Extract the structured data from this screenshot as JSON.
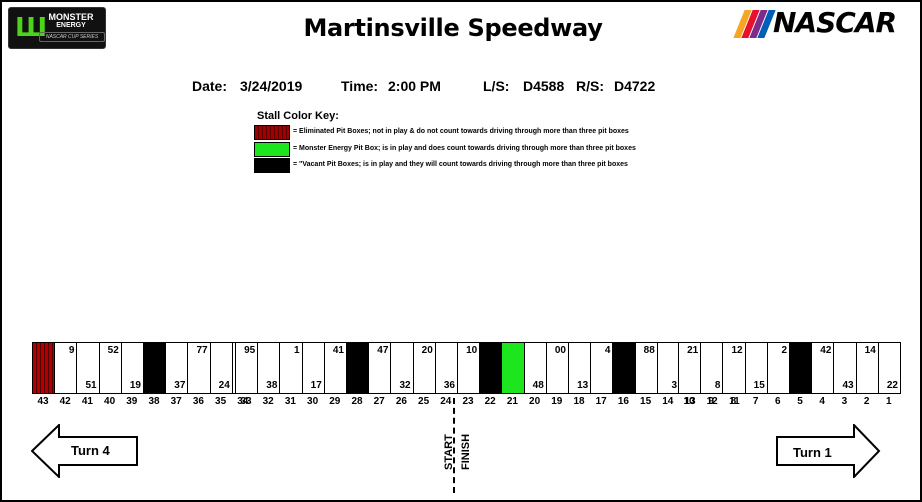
{
  "header": {
    "title": "Martinsville Speedway",
    "logo_left": {
      "line1": "MONSTER",
      "line2": "ENERGY",
      "line3": "NASCAR CUP SERIES",
      "icon": "monster-m-icon"
    },
    "logo_right": {
      "word": "NASCAR",
      "stripe_colors": [
        "#f5a623",
        "#e8112d",
        "#7b2d8e",
        "#005eb8"
      ]
    }
  },
  "info": {
    "date_label": "Date:",
    "date": "3/24/2019",
    "time_label": "Time:",
    "time": "2:00 PM",
    "ls_label": "L/S:",
    "ls": "D4588",
    "rs_label": "R/S:",
    "rs": "D4722"
  },
  "key": {
    "title": "Stall Color Key:",
    "items": [
      {
        "type": "eliminated",
        "color": "#a00000",
        "text": "= Eliminated Pit Boxes; not in play & do not count towards driving through more than three pit boxes"
      },
      {
        "type": "monster",
        "color": "#1ee61e",
        "text": "= Monster Energy Pit Box; is in play and does count towards driving through more than three pit boxes"
      },
      {
        "type": "vacant",
        "color": "#000000",
        "text": "= \"Vacant Pit Boxes; is in play and they will count towards driving through more than three pit boxes"
      }
    ]
  },
  "pit_road": {
    "groups": [
      {
        "stalls": [
          {
            "box": "43",
            "type": "eliminated",
            "car": ""
          },
          {
            "box": "42",
            "type": "normal",
            "car": "9"
          },
          {
            "box": "41",
            "type": "normal",
            "car": "51"
          },
          {
            "box": "40",
            "type": "normal",
            "car": "52"
          },
          {
            "box": "39",
            "type": "normal",
            "car": "19"
          },
          {
            "box": "38",
            "type": "vacant",
            "car": ""
          },
          {
            "box": "37",
            "type": "normal",
            "car": "37"
          },
          {
            "box": "36",
            "type": "normal",
            "car": "77"
          },
          {
            "box": "35",
            "type": "normal",
            "car": "24"
          },
          {
            "box": "34",
            "type": "normal",
            "car": "6"
          }
        ]
      },
      {
        "stalls": [
          {
            "box": "33",
            "type": "normal",
            "car": "95"
          },
          {
            "box": "32",
            "type": "normal",
            "car": "38"
          },
          {
            "box": "31",
            "type": "normal",
            "car": "1"
          },
          {
            "box": "30",
            "type": "normal",
            "car": "17"
          },
          {
            "box": "29",
            "type": "normal",
            "car": "41"
          },
          {
            "box": "28",
            "type": "vacant",
            "car": ""
          },
          {
            "box": "27",
            "type": "normal",
            "car": "47"
          },
          {
            "box": "26",
            "type": "normal",
            "car": "32"
          },
          {
            "box": "25",
            "type": "normal",
            "car": "20"
          },
          {
            "box": "24",
            "type": "normal",
            "car": "36"
          },
          {
            "box": "23",
            "type": "normal",
            "car": "10"
          },
          {
            "box": "22",
            "type": "vacant",
            "car": ""
          },
          {
            "box": "21",
            "type": "monster",
            "car": ""
          },
          {
            "box": "20",
            "type": "normal",
            "car": "48"
          },
          {
            "box": "19",
            "type": "normal",
            "car": "00"
          },
          {
            "box": "18",
            "type": "normal",
            "car": "13"
          },
          {
            "box": "17",
            "type": "normal",
            "car": "4"
          },
          {
            "box": "16",
            "type": "vacant",
            "car": ""
          },
          {
            "box": "15",
            "type": "normal",
            "car": "88"
          },
          {
            "box": "14",
            "type": "normal",
            "car": "3"
          },
          {
            "box": "13",
            "type": "normal",
            "car": "18"
          },
          {
            "box": "12",
            "type": "normal",
            "car": "34"
          },
          {
            "box": "11",
            "type": "normal",
            "car": "11"
          }
        ]
      },
      {
        "stalls": [
          {
            "box": "10",
            "type": "normal",
            "car": "21"
          },
          {
            "box": "9",
            "type": "normal",
            "car": "8"
          },
          {
            "box": "8",
            "type": "normal",
            "car": "12"
          },
          {
            "box": "7",
            "type": "normal",
            "car": "15"
          },
          {
            "box": "6",
            "type": "normal",
            "car": "2"
          },
          {
            "box": "5",
            "type": "vacant",
            "car": ""
          },
          {
            "box": "4",
            "type": "normal",
            "car": "42"
          },
          {
            "box": "3",
            "type": "normal",
            "car": "43"
          },
          {
            "box": "2",
            "type": "normal",
            "car": "14"
          },
          {
            "box": "1",
            "type": "normal",
            "car": "22"
          }
        ]
      }
    ],
    "start_label": "START",
    "finish_label": "FINISH"
  },
  "turns": {
    "left": "Turn 4",
    "right": "Turn 1"
  }
}
